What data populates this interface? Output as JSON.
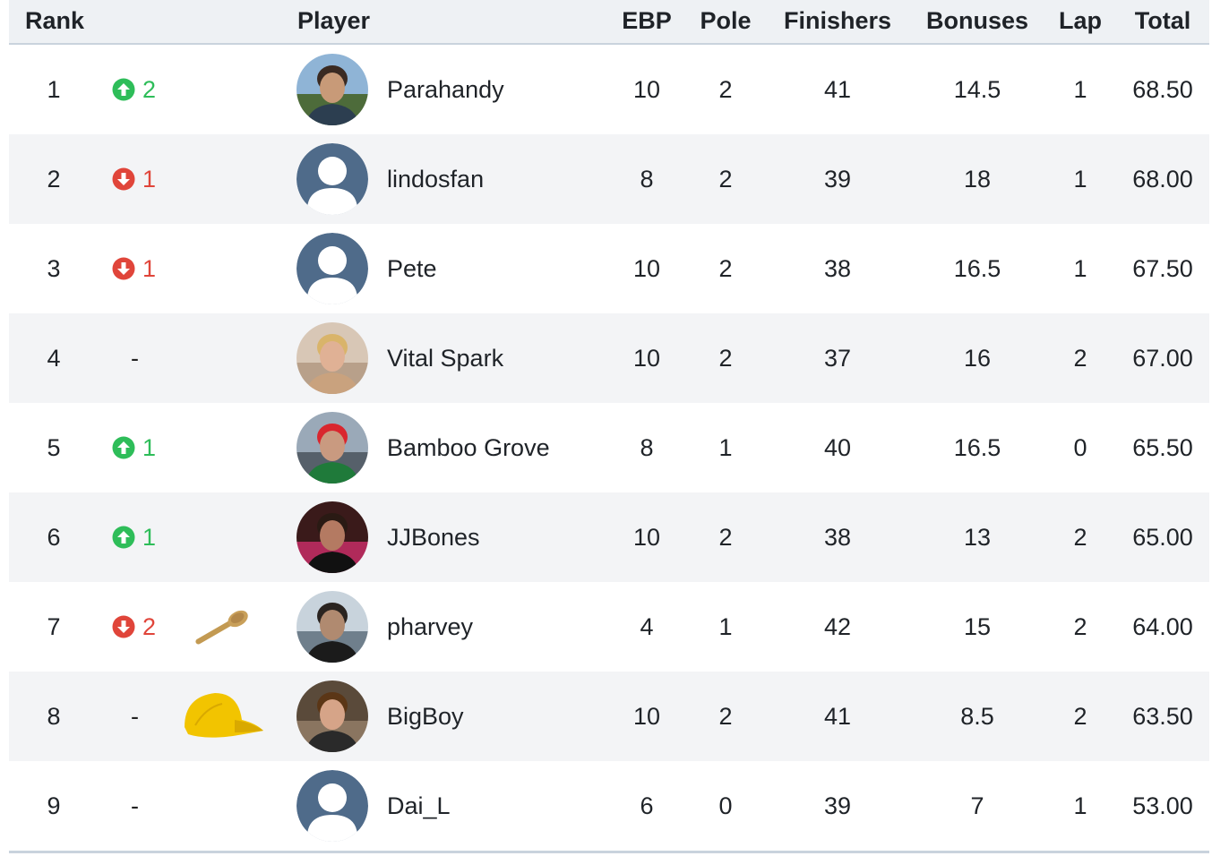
{
  "headers": {
    "rank": "Rank",
    "player": "Player",
    "ebp": "EBP",
    "pole": "Pole",
    "finishers": "Finishers",
    "bonuses": "Bonuses",
    "lap": "Lap",
    "total": "Total"
  },
  "colors": {
    "up": "#2ebd59",
    "down": "#e0453a",
    "header_bg": "#eef1f4",
    "row_alt": "#f3f4f6"
  },
  "rows": [
    {
      "rank": "1",
      "move_dir": "up",
      "move": "2",
      "badge": "",
      "avatar": "photo-man-glasses-outdoors",
      "player": "Parahandy",
      "ebp": "10",
      "pole": "2",
      "finishers": "41",
      "bonuses": "14.5",
      "lap": "1",
      "total": "68.50"
    },
    {
      "rank": "2",
      "move_dir": "down",
      "move": "1",
      "badge": "",
      "avatar": "default-user-icon",
      "player": "lindosfan",
      "ebp": "8",
      "pole": "2",
      "finishers": "39",
      "bonuses": "18",
      "lap": "1",
      "total": "68.00"
    },
    {
      "rank": "3",
      "move_dir": "down",
      "move": "1",
      "badge": "",
      "avatar": "default-user-icon",
      "player": "Pete",
      "ebp": "10",
      "pole": "2",
      "finishers": "38",
      "bonuses": "16.5",
      "lap": "1",
      "total": "67.50"
    },
    {
      "rank": "4",
      "move_dir": "same",
      "move": "-",
      "badge": "",
      "avatar": "photo-woman-blonde",
      "player": "Vital Spark",
      "ebp": "10",
      "pole": "2",
      "finishers": "37",
      "bonuses": "16",
      "lap": "2",
      "total": "67.00"
    },
    {
      "rank": "5",
      "move_dir": "up",
      "move": "1",
      "badge": "",
      "avatar": "photo-man-scarf-stadium",
      "player": "Bamboo Grove",
      "ebp": "8",
      "pole": "1",
      "finishers": "40",
      "bonuses": "16.5",
      "lap": "0",
      "total": "65.50"
    },
    {
      "rank": "6",
      "move_dir": "up",
      "move": "1",
      "badge": "",
      "avatar": "photo-man-glasses-dark",
      "player": "JJBones",
      "ebp": "10",
      "pole": "2",
      "finishers": "38",
      "bonuses": "13",
      "lap": "2",
      "total": "65.00"
    },
    {
      "rank": "7",
      "move_dir": "down",
      "move": "2",
      "badge": "wooden-spoon-icon",
      "avatar": "photo-man-waterfront",
      "player": "pharvey",
      "ebp": "4",
      "pole": "1",
      "finishers": "42",
      "bonuses": "15",
      "lap": "2",
      "total": "64.00"
    },
    {
      "rank": "8",
      "move_dir": "same",
      "move": "-",
      "badge": "yellow-cap-icon",
      "avatar": "photo-man-long-hair",
      "player": "BigBoy",
      "ebp": "10",
      "pole": "2",
      "finishers": "41",
      "bonuses": "8.5",
      "lap": "2",
      "total": "63.50"
    },
    {
      "rank": "9",
      "move_dir": "same",
      "move": "-",
      "badge": "",
      "avatar": "default-user-icon",
      "player": "Dai_L",
      "ebp": "6",
      "pole": "0",
      "finishers": "39",
      "bonuses": "7",
      "lap": "1",
      "total": "53.00"
    }
  ]
}
